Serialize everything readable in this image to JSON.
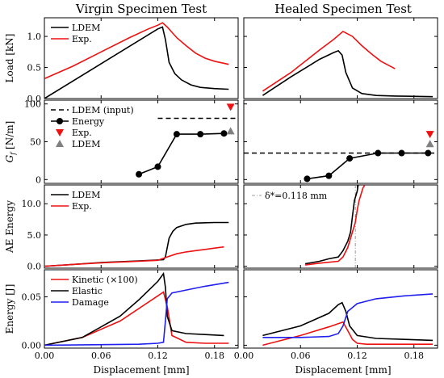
{
  "figure": {
    "col_titles": [
      "Virgin Specimen Test",
      "Healed Specimen Test"
    ],
    "row_ylabels": [
      "Load [kN]",
      "G_f [N/m]",
      "AE Energy",
      "Energy [J]"
    ],
    "xlabel": "Displacement [mm]",
    "x_ticks": [
      "0.00",
      "0.06",
      "0.12",
      "0.18"
    ],
    "colors": {
      "black": "#000000",
      "red": "#ee1111",
      "blue": "#1f1fee",
      "gray": "#808080"
    }
  },
  "chart_data": [
    {
      "id": "load-virgin",
      "type": "line",
      "xlim": [
        0,
        0.205
      ],
      "ylim": [
        0,
        1.3
      ],
      "yticks": [
        0.0,
        0.5,
        1.0
      ],
      "ytick_labels": [
        "0.0",
        "0.5",
        "1.0"
      ],
      "ylabel": "Load [kN]",
      "title": "Virgin Specimen Test",
      "legend_position": "top-left",
      "series": [
        {
          "name": "LDEM",
          "color": "#000000",
          "x": [
            0.0,
            0.06,
            0.12,
            0.125,
            0.128,
            0.132,
            0.138,
            0.145,
            0.155,
            0.165,
            0.18,
            0.195
          ],
          "y": [
            0.0,
            0.56,
            1.12,
            1.15,
            0.95,
            0.58,
            0.4,
            0.3,
            0.22,
            0.18,
            0.16,
            0.15
          ]
        },
        {
          "name": "Exp.",
          "color": "#ee1111",
          "x": [
            0.0,
            0.03,
            0.06,
            0.09,
            0.11,
            0.12,
            0.125,
            0.13,
            0.14,
            0.15,
            0.16,
            0.17,
            0.18,
            0.195
          ],
          "y": [
            0.32,
            0.52,
            0.75,
            0.98,
            1.12,
            1.18,
            1.22,
            1.15,
            0.98,
            0.85,
            0.73,
            0.65,
            0.6,
            0.55
          ]
        }
      ]
    },
    {
      "id": "load-healed",
      "type": "line",
      "xlim": [
        0,
        0.205
      ],
      "ylim": [
        0,
        1.3
      ],
      "yticks": [
        0.0,
        0.5,
        1.0
      ],
      "ytick_labels": [],
      "title": "Healed Specimen Test",
      "series": [
        {
          "name": "LDEM",
          "color": "#000000",
          "x": [
            0.02,
            0.05,
            0.08,
            0.095,
            0.1,
            0.104,
            0.108,
            0.115,
            0.125,
            0.14,
            0.16,
            0.2
          ],
          "y": [
            0.05,
            0.35,
            0.63,
            0.74,
            0.77,
            0.7,
            0.42,
            0.17,
            0.08,
            0.05,
            0.04,
            0.03
          ]
        },
        {
          "name": "Exp.",
          "color": "#ee1111",
          "x": [
            0.02,
            0.05,
            0.08,
            0.095,
            0.105,
            0.115,
            0.125,
            0.135,
            0.145,
            0.16
          ],
          "y": [
            0.12,
            0.42,
            0.78,
            0.95,
            1.08,
            1.0,
            0.85,
            0.72,
            0.6,
            0.48
          ]
        }
      ]
    },
    {
      "id": "gf-virgin",
      "type": "line",
      "xlim": [
        0,
        0.205
      ],
      "ylim": [
        -5,
        105
      ],
      "yticks": [
        0,
        50,
        100
      ],
      "ytick_labels": [
        "0",
        "50",
        "100"
      ],
      "ylabel": "G_f [N/m]",
      "legend_position": "top-left",
      "series": [
        {
          "name": "LDEM (input)",
          "color": "#000000",
          "style": "dashed",
          "x": [
            0.12,
            0.205
          ],
          "y": [
            81,
            81
          ]
        },
        {
          "name": "Energy",
          "color": "#000000",
          "marker": "circle",
          "x": [
            0.1,
            0.12,
            0.14,
            0.165,
            0.19
          ],
          "y": [
            7,
            17,
            60,
            60,
            61
          ]
        },
        {
          "name": "Exp.",
          "color": "#ee1111",
          "marker": "triangle-down",
          "x": [
            0.197
          ],
          "y": [
            96
          ]
        },
        {
          "name": "LDEM",
          "color": "#808080",
          "marker": "triangle-up",
          "x": [
            0.197
          ],
          "y": [
            64
          ]
        }
      ]
    },
    {
      "id": "gf-healed",
      "type": "line",
      "xlim": [
        0,
        0.205
      ],
      "ylim": [
        -5,
        105
      ],
      "yticks": [
        0,
        50,
        100
      ],
      "ytick_labels": [],
      "series": [
        {
          "name": "LDEM (input)",
          "color": "#000000",
          "style": "dashed",
          "x": [
            0,
            0.205
          ],
          "y": [
            35,
            35
          ]
        },
        {
          "name": "Energy",
          "color": "#000000",
          "marker": "circle",
          "x": [
            0.067,
            0.09,
            0.112,
            0.142,
            0.167,
            0.195
          ],
          "y": [
            1,
            5,
            28,
            35,
            35,
            35
          ]
        },
        {
          "name": "Exp.",
          "color": "#ee1111",
          "marker": "triangle-down",
          "x": [
            0.197
          ],
          "y": [
            60
          ]
        },
        {
          "name": "LDEM",
          "color": "#808080",
          "marker": "triangle-up",
          "x": [
            0.197
          ],
          "y": [
            47
          ]
        }
      ]
    },
    {
      "id": "ae-virgin",
      "type": "line",
      "xlim": [
        0,
        0.205
      ],
      "ylim": [
        -0.3,
        13
      ],
      "yticks": [
        0,
        5,
        10
      ],
      "ytick_labels": [
        "0.0",
        "5.0",
        "10.0"
      ],
      "ylabel": "AE Energy",
      "legend_position": "top-left",
      "series": [
        {
          "name": "LDEM",
          "color": "#000000",
          "x": [
            0.0,
            0.03,
            0.06,
            0.09,
            0.12,
            0.126,
            0.128,
            0.13,
            0.132,
            0.136,
            0.14,
            0.15,
            0.16,
            0.18,
            0.195
          ],
          "y": [
            0.0,
            0.3,
            0.6,
            0.8,
            1.0,
            1.05,
            1.5,
            3.0,
            4.5,
            5.6,
            6.2,
            6.7,
            6.9,
            7.0,
            7.0
          ]
        },
        {
          "name": "Exp.",
          "color": "#ee1111",
          "x": [
            0.0,
            0.03,
            0.06,
            0.09,
            0.12,
            0.13,
            0.14,
            0.15,
            0.16,
            0.17,
            0.18,
            0.19
          ],
          "y": [
            0.0,
            0.3,
            0.55,
            0.75,
            0.95,
            1.5,
            2.0,
            2.3,
            2.5,
            2.7,
            2.9,
            3.1
          ]
        }
      ]
    },
    {
      "id": "ae-healed",
      "type": "line",
      "xlim": [
        0,
        0.205
      ],
      "ylim": [
        -0.3,
        13
      ],
      "yticks": [
        0,
        5,
        10
      ],
      "ytick_labels": [],
      "annotation": {
        "label": "δ*=0.118 mm",
        "x": 0.118
      },
      "series": [
        {
          "name": "LDEM",
          "color": "#000000",
          "x": [
            0.065,
            0.08,
            0.09,
            0.1,
            0.105,
            0.11,
            0.113,
            0.115,
            0.117,
            0.12,
            0.121
          ],
          "y": [
            0.4,
            0.8,
            1.2,
            1.5,
            2.5,
            4.0,
            5.5,
            8.0,
            10.5,
            12.0,
            13.0
          ]
        },
        {
          "name": "Exp.",
          "color": "#ee1111",
          "x": [
            0.065,
            0.08,
            0.1,
            0.105,
            0.11,
            0.115,
            0.118,
            0.12,
            0.122,
            0.124,
            0.126,
            0.128
          ],
          "y": [
            0.2,
            0.5,
            0.8,
            1.5,
            3.0,
            5.5,
            7.0,
            9.0,
            10.5,
            11.5,
            12.5,
            13.0
          ]
        }
      ]
    },
    {
      "id": "energy-virgin",
      "type": "line",
      "xlim": [
        0,
        0.205
      ],
      "ylim": [
        -0.003,
        0.078
      ],
      "yticks": [
        0.0,
        0.05
      ],
      "ytick_labels": [
        "0.00",
        "0.05"
      ],
      "ylabel": "Energy [J]",
      "legend_position": "top-left",
      "series": [
        {
          "name": "Kinetic (×100)",
          "color": "#ee1111",
          "x": [
            0.0,
            0.04,
            0.08,
            0.1,
            0.12,
            0.126,
            0.13,
            0.135,
            0.15,
            0.17,
            0.195
          ],
          "y": [
            0.0,
            0.008,
            0.025,
            0.038,
            0.051,
            0.055,
            0.04,
            0.01,
            0.003,
            0.002,
            0.002
          ]
        },
        {
          "name": "Elastic",
          "color": "#000000",
          "x": [
            0.0,
            0.04,
            0.08,
            0.1,
            0.12,
            0.126,
            0.128,
            0.13,
            0.135,
            0.15,
            0.17,
            0.19
          ],
          "y": [
            0.0,
            0.008,
            0.03,
            0.047,
            0.066,
            0.074,
            0.06,
            0.03,
            0.015,
            0.012,
            0.011,
            0.01
          ]
        },
        {
          "name": "Damage",
          "color": "#1f1fee",
          "x": [
            0.0,
            0.1,
            0.12,
            0.126,
            0.128,
            0.13,
            0.135,
            0.15,
            0.17,
            0.195
          ],
          "y": [
            0.0,
            0.001,
            0.002,
            0.003,
            0.025,
            0.048,
            0.054,
            0.057,
            0.061,
            0.065
          ]
        }
      ]
    },
    {
      "id": "energy-healed",
      "type": "line",
      "xlim": [
        0,
        0.205
      ],
      "ylim": [
        -0.003,
        0.078
      ],
      "yticks": [
        0.0,
        0.05
      ],
      "ytick_labels": [],
      "series": [
        {
          "name": "Kinetic (×100)",
          "color": "#ee1111",
          "x": [
            0.02,
            0.06,
            0.09,
            0.105,
            0.11,
            0.115,
            0.12,
            0.13,
            0.15,
            0.2
          ],
          "y": [
            0.0,
            0.01,
            0.019,
            0.024,
            0.015,
            0.006,
            0.002,
            0.001,
            0.001,
            0.001
          ]
        },
        {
          "name": "Elastic",
          "color": "#000000",
          "x": [
            0.02,
            0.06,
            0.09,
            0.1,
            0.104,
            0.108,
            0.112,
            0.12,
            0.14,
            0.17,
            0.2
          ],
          "y": [
            0.01,
            0.02,
            0.033,
            0.042,
            0.044,
            0.035,
            0.02,
            0.01,
            0.007,
            0.006,
            0.005
          ]
        },
        {
          "name": "Damage",
          "color": "#1f1fee",
          "x": [
            0.02,
            0.06,
            0.09,
            0.1,
            0.105,
            0.11,
            0.12,
            0.14,
            0.17,
            0.2
          ],
          "y": [
            0.008,
            0.008,
            0.009,
            0.012,
            0.02,
            0.035,
            0.043,
            0.048,
            0.051,
            0.053
          ]
        }
      ]
    }
  ],
  "legends": {
    "load": [
      "LDEM",
      "Exp."
    ],
    "gf": [
      "LDEM (input)",
      "Energy",
      "Exp.",
      "LDEM"
    ],
    "ae": [
      "LDEM",
      "Exp."
    ],
    "energy": [
      "Kinetic (×100)",
      "Elastic",
      "Damage"
    ]
  }
}
